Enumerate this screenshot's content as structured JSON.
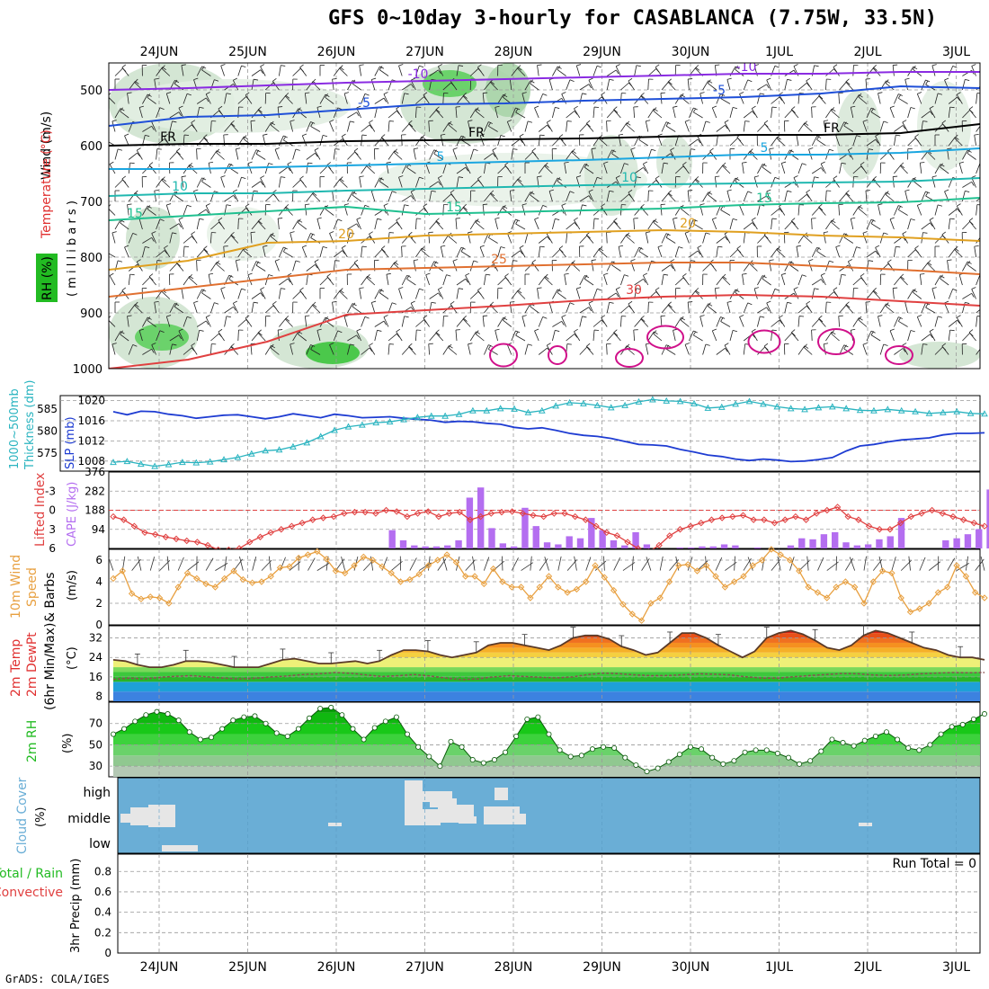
{
  "title": "GFS 0~10day 3-hourly for CASABLANCA (7.75W, 33.5N)",
  "footer": "GrADS: COLA/IGES",
  "dates": [
    "24JUN",
    "25JUN",
    "26JUN",
    "27JUN",
    "28JUN",
    "29JUN",
    "30JUN",
    "1JUL",
    "2JUL",
    "3JUL"
  ],
  "colors": {
    "slp": "#1e3cd2",
    "thickness": "#2ab4c0",
    "cape": "#b46ef0",
    "lifted": "#e04040",
    "wind": "#e8a040",
    "rh": "#22bb22",
    "cloud_bg": "#6aaed6",
    "cloud_fill": "#e6e6e6",
    "grid": "#999999"
  },
  "panels": {
    "upper": {
      "label_wind": "Wind (m/s)",
      "label_temp": "Temperature (°C)",
      "label_mb": "( m i l l i b a r s )",
      "label_rh": "RH (%)",
      "ylevels": [
        "500",
        "600",
        "700",
        "800",
        "900",
        "1000"
      ],
      "contours": [
        "-10",
        "-5",
        "FR",
        "5",
        "10",
        "15",
        "20",
        "25",
        "30"
      ]
    },
    "slp": {
      "label_thick": "1000~500mb",
      "label_thick2": "Thickness (dm)",
      "label_slp": "SLP (mb)",
      "left_ticks": [
        "585",
        "580",
        "575"
      ],
      "right_ticks": [
        "1020",
        "1016",
        "1012",
        "1008"
      ]
    },
    "cape": {
      "label_li": "Lifted Index",
      "label_cape": "CAPE (J/kg)",
      "left_ticks": [
        "-3",
        "0",
        "3",
        "6"
      ],
      "right_ticks": [
        "376",
        "282",
        "188",
        "94"
      ]
    },
    "wind10": {
      "label1": "10m Wind",
      "label2": "Speed",
      "label3": "& Barbs",
      "label4": "(m/s)",
      "ticks": [
        "6",
        "4",
        "2",
        "0"
      ]
    },
    "temp2m": {
      "label1": "2m Temp",
      "label2": "2m DewPt",
      "label3": "(6hr Min/Max)",
      "label4": "(°C)",
      "ticks": [
        "32",
        "24",
        "16",
        "8"
      ]
    },
    "rh2m": {
      "label1": "2m RH",
      "label2": "(%)",
      "ticks": [
        "70",
        "50",
        "30"
      ]
    },
    "cloud": {
      "label1": "Cloud Cover",
      "label2": "(%)",
      "levels": [
        "high",
        "middle",
        "low"
      ]
    },
    "precip": {
      "label1": "Total / Rain",
      "label2": "Convective",
      "label3": "3hr Precip (mm)",
      "run_total": "Run Total = 0",
      "ticks": [
        "0.8",
        "0.6",
        "0.4",
        "0.2",
        "0"
      ]
    }
  },
  "chart_data": [
    {
      "type": "line",
      "title": "SLP (mb)",
      "series": [
        {
          "name": "SLP (mb)",
          "values": [
            1017.8,
            1017.2,
            1017.9,
            1017.8,
            1017.3,
            1017.0,
            1016.5,
            1016.8,
            1017.1,
            1017.2,
            1016.8,
            1016.4,
            1016.8,
            1017.4,
            1017.0,
            1016.6,
            1017.3,
            1017.0,
            1016.6,
            1016.7,
            1016.8,
            1016.5,
            1016.3,
            1016.1,
            1015.7,
            1015.9,
            1015.8,
            1015.5,
            1015.3,
            1014.7,
            1014.4,
            1014.6,
            1014.1,
            1013.5,
            1013.1,
            1012.9,
            1012.5,
            1011.9,
            1011.3,
            1011.2,
            1011.0,
            1010.3,
            1009.8,
            1009.2,
            1008.9,
            1008.4,
            1008.1,
            1008.4,
            1008.2,
            1007.9,
            1008.0,
            1008.3,
            1008.7,
            1010.0,
            1011.0,
            1011.3,
            1011.8,
            1012.2,
            1012.4,
            1012.6,
            1013.2,
            1013.5,
            1013.5,
            1013.6
          ]
        },
        {
          "name": "1000~500mb Thickness (dm)",
          "values": [
            573.0,
            573.2,
            572.6,
            572.1,
            572.5,
            573.0,
            572.9,
            573.1,
            573.6,
            574.1,
            574.9,
            575.6,
            575.8,
            576.5,
            577.4,
            578.8,
            580.2,
            581.0,
            581.4,
            581.9,
            582.1,
            582.6,
            583.1,
            583.4,
            583.4,
            583.8,
            584.6,
            584.6,
            585.1,
            585.0,
            584.2,
            584.6,
            585.7,
            586.4,
            586.2,
            585.8,
            585.3,
            585.8,
            586.6,
            587.1,
            586.8,
            586.7,
            586.2,
            585.2,
            585.4,
            586.1,
            586.7,
            586.1,
            585.5,
            585.1,
            584.9,
            585.3,
            585.5,
            585.1,
            584.7,
            584.6,
            584.9,
            584.6,
            584.4,
            584.0,
            584.2,
            584.4,
            584.0,
            583.9
          ]
        }
      ],
      "ylim": [
        1006,
        1021
      ]
    },
    {
      "type": "bar",
      "title": "CAPE (J/kg)",
      "x_start": "27JUN",
      "step_hours": 3,
      "values": [
        90,
        40,
        15,
        10,
        10,
        15,
        40,
        250,
        300,
        100,
        25,
        10,
        200,
        110,
        30,
        20,
        60,
        50,
        150,
        90,
        40,
        15,
        80,
        20,
        0,
        0,
        5,
        5,
        10,
        10,
        20,
        15,
        0,
        5,
        0,
        0,
        15,
        50,
        45,
        70,
        80,
        30,
        15,
        20,
        45,
        60,
        150,
        0,
        0,
        0,
        40,
        50,
        70,
        95,
        290,
        90,
        60,
        60,
        30,
        15
      ],
      "ylim": [
        0,
        376
      ]
    },
    {
      "type": "line",
      "title": "Lifted Index",
      "values": [
        1.0,
        1.5,
        2.5,
        3.5,
        3.8,
        4.2,
        4.5,
        4.8,
        5.0,
        5.5,
        6.2,
        6.2,
        6.0,
        5.0,
        4.2,
        3.5,
        3.0,
        2.5,
        2.0,
        1.5,
        1.2,
        1.0,
        0.5,
        0.3,
        0.3,
        0.5,
        0.0,
        0.2,
        1.0,
        0.5,
        0.2,
        1.0,
        0.5,
        0.3,
        1.5,
        1.0,
        0.5,
        0.3,
        0.2,
        0.5,
        0.8,
        1.0,
        0.5,
        0.5,
        1.0,
        1.5,
        2.5,
        3.5,
        4.0,
        5.0,
        6.0,
        6.5,
        5.5,
        4.0,
        3.0,
        2.5,
        2.0,
        1.5,
        1.2,
        1.0,
        0.8,
        1.5,
        1.5,
        2.0,
        1.5,
        1.0,
        1.5,
        0.5,
        0.0,
        -0.5,
        1.0,
        1.5,
        2.5,
        3.0,
        3.0,
        2.0,
        1.0,
        0.5,
        0.0,
        0.5,
        1.0,
        1.5,
        2.0,
        2.5
      ],
      "ylim": [
        -6,
        6
      ]
    },
    {
      "type": "line",
      "title": "10m Wind Speed (m/s)",
      "values": [
        4.3,
        5.0,
        2.9,
        2.4,
        2.6,
        2.5,
        2.0,
        3.5,
        4.8,
        4.3,
        3.8,
        3.5,
        4.3,
        5.0,
        4.2,
        3.9,
        4.0,
        4.5,
        5.3,
        5.4,
        6.2,
        6.5,
        6.8,
        6.1,
        5.0,
        4.8,
        5.5,
        6.3,
        6.0,
        5.4,
        4.8,
        4.0,
        4.2,
        4.7,
        5.5,
        6.0,
        6.5,
        5.8,
        4.5,
        4.5,
        3.8,
        5.2,
        4.0,
        3.5,
        3.5,
        2.5,
        3.5,
        4.5,
        3.5,
        3.0,
        3.3,
        4.0,
        5.5,
        4.4,
        3.2,
        1.9,
        1.0,
        0.4,
        2.0,
        2.5,
        4.0,
        5.5,
        5.6,
        5.0,
        5.5,
        4.5,
        3.5,
        4.0,
        4.5,
        5.5,
        6.0,
        7.0,
        6.5,
        6.0,
        5.0,
        3.5,
        3.0,
        2.5,
        3.5,
        4.0,
        3.5,
        2.0,
        4.0,
        5.0,
        4.8,
        2.5,
        1.2,
        1.5,
        2.0,
        3.0,
        3.5,
        5.5,
        4.5,
        3.0,
        2.5
      ],
      "ylim": [
        0,
        7
      ]
    },
    {
      "type": "area",
      "title": "2m Temp (°C)",
      "values": [
        23,
        22.5,
        21,
        20,
        20,
        21,
        22.5,
        22.5,
        22,
        21,
        20,
        20,
        20,
        21.5,
        23,
        23.5,
        22.5,
        21.5,
        21.5,
        22,
        22.5,
        21.5,
        22.5,
        25,
        27,
        27,
        26.5,
        25,
        24,
        25,
        26,
        29,
        30,
        30,
        29,
        28,
        27,
        29,
        32,
        33,
        33,
        31.5,
        28.5,
        27,
        25,
        26,
        30,
        34,
        34,
        32,
        29,
        26.5,
        24,
        26.5,
        32,
        34,
        35,
        33.5,
        31,
        28,
        27,
        29,
        33,
        35,
        34,
        32,
        30,
        28,
        27,
        25,
        24,
        24,
        23
      ],
      "ylim": [
        6,
        37
      ]
    },
    {
      "type": "line",
      "title": "2m DewPt (°C)",
      "values": [
        15,
        15.5,
        15.2,
        15.8,
        16.3,
        16.5,
        16.0,
        15.5,
        15.2,
        15.5,
        16.0,
        16.4,
        17.0,
        17.3,
        17.8,
        17.5,
        16.8,
        16.2,
        16.5,
        17.0,
        16.4,
        15.5,
        14.9,
        15.2,
        16.0,
        16.5,
        16.2,
        15.8,
        15.6,
        16.0,
        17.0,
        17.6,
        17.3,
        16.8,
        16.5,
        16.6,
        16.9,
        17.3,
        17.1,
        16.8,
        16.0,
        15.5,
        15.5,
        16.1,
        16.6,
        17.0,
        17.4,
        17.3,
        16.8,
        16.6,
        16.8,
        17.3,
        17.6,
        17.8,
        17.7,
        17.8
      ],
      "ylim": [
        6,
        37
      ]
    },
    {
      "type": "area",
      "title": "2m RH (%)",
      "values": [
        60,
        65,
        72,
        78,
        81,
        79,
        73,
        62,
        55,
        57,
        65,
        73,
        76,
        77,
        70,
        61,
        58,
        65,
        75,
        84,
        85,
        78,
        65,
        55,
        66,
        72,
        76,
        60,
        48,
        39,
        30,
        53,
        48,
        36,
        33,
        36,
        43,
        58,
        74,
        76,
        60,
        45,
        39,
        40,
        46,
        48,
        47,
        38,
        31,
        25,
        28,
        34,
        41,
        48,
        46,
        38,
        32,
        35,
        43,
        45,
        45,
        42,
        38,
        32,
        35,
        44,
        55,
        52,
        49,
        54,
        58,
        62,
        55,
        47,
        45,
        50,
        60,
        67,
        69,
        74,
        79
      ],
      "ylim": [
        20,
        90
      ]
    }
  ]
}
